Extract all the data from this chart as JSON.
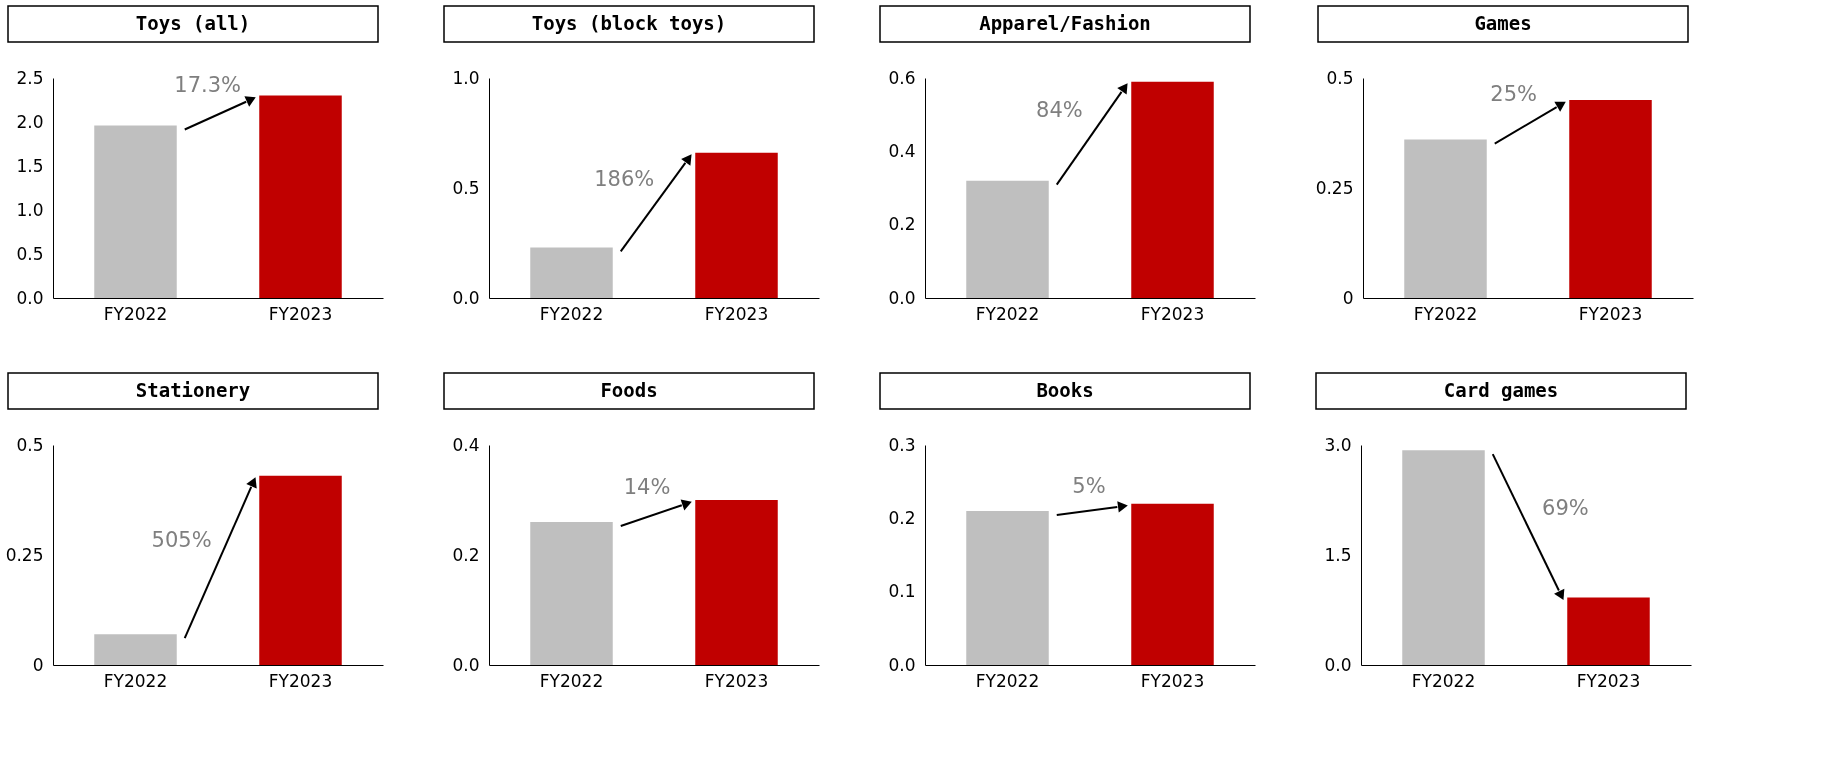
{
  "chart_data": [
    {
      "type": "bar",
      "title": "Toys (all)",
      "categories": [
        "FY2022",
        "FY2023"
      ],
      "values": [
        1.96,
        2.3
      ],
      "colors": [
        "#bfbfbf",
        "#c00000"
      ],
      "ylim": [
        0,
        2.5
      ],
      "yticks": [
        {
          "value": 0,
          "label": "0.0"
        },
        0.5,
        {
          "value": 1,
          "label": "1.0"
        },
        1.5,
        {
          "value": 2,
          "label": "2.0"
        },
        2.5
      ],
      "annotations": [
        "17.3%"
      ]
    },
    {
      "type": "bar",
      "title": "Toys (block toys)",
      "categories": [
        "FY2022",
        "FY2023"
      ],
      "values": [
        0.23,
        0.66
      ],
      "colors": [
        "#bfbfbf",
        "#c00000"
      ],
      "ylim": [
        0,
        1
      ],
      "yticks": [
        {
          "value": 0,
          "label": "0.0"
        },
        0.5,
        {
          "value": 1,
          "label": "1.0"
        }
      ],
      "annotations": [
        "186%"
      ]
    },
    {
      "type": "bar",
      "title": "Apparel/Fashion",
      "categories": [
        "FY2022",
        "FY2023"
      ],
      "values": [
        0.32,
        0.59
      ],
      "colors": [
        "#bfbfbf",
        "#c00000"
      ],
      "ylim": [
        0,
        0.6
      ],
      "yticks": [
        {
          "value": 0,
          "label": "0.0"
        },
        0.2,
        0.4,
        0.6
      ],
      "annotations": [
        "84%"
      ]
    },
    {
      "type": "bar",
      "title": "Games",
      "categories": [
        "FY2022",
        "FY2023"
      ],
      "values": [
        0.36,
        0.45
      ],
      "colors": [
        "#bfbfbf",
        "#c00000"
      ],
      "ylim": [
        0,
        0.5
      ],
      "yticks": [
        0,
        0.25,
        0.5
      ],
      "annotations": [
        "25%"
      ]
    },
    {
      "type": "bar",
      "title": "Stationery",
      "categories": [
        "FY2022",
        "FY2023"
      ],
      "values": [
        0.07,
        0.43
      ],
      "colors": [
        "#bfbfbf",
        "#c00000"
      ],
      "ylim": [
        0,
        0.5
      ],
      "yticks": [
        0,
        0.25,
        0.5
      ],
      "annotations": [
        "505%"
      ]
    },
    {
      "type": "bar",
      "title": "Foods",
      "categories": [
        "FY2022",
        "FY2023"
      ],
      "values": [
        0.26,
        0.3
      ],
      "colors": [
        "#bfbfbf",
        "#c00000"
      ],
      "ylim": [
        0,
        0.4
      ],
      "yticks": [
        {
          "value": 0,
          "label": "0.0"
        },
        0.2,
        0.4
      ],
      "annotations": [
        "14%"
      ]
    },
    {
      "type": "bar",
      "title": "Books",
      "categories": [
        "FY2022",
        "FY2023"
      ],
      "values": [
        0.21,
        0.22
      ],
      "colors": [
        "#bfbfbf",
        "#c00000"
      ],
      "ylim": [
        0,
        0.3
      ],
      "yticks": [
        {
          "value": 0,
          "label": "0.0"
        },
        0.1,
        0.2,
        0.3
      ],
      "annotations": [
        "5%"
      ]
    },
    {
      "type": "bar",
      "title": "Card games",
      "categories": [
        "FY2022",
        "FY2023"
      ],
      "values": [
        2.93,
        0.92
      ],
      "colors": [
        "#bfbfbf",
        "#c00000"
      ],
      "ylim": [
        0,
        3
      ],
      "yticks": [
        {
          "value": 0,
          "label": "0.0"
        },
        1.5,
        {
          "value": 3,
          "label": "3.0"
        }
      ],
      "annotations": [
        "69%"
      ]
    }
  ]
}
